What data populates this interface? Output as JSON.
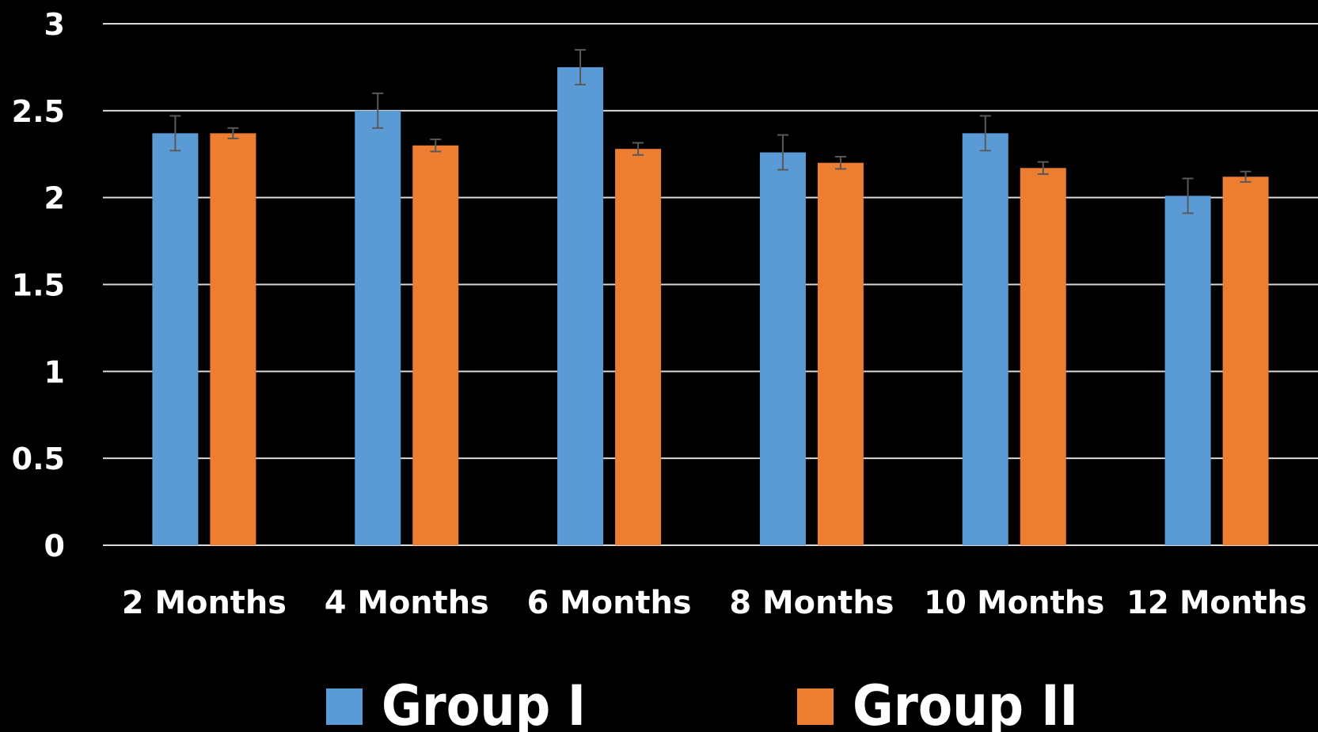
{
  "chart_data": {
    "type": "bar",
    "categories": [
      "2 Months",
      "4 Months",
      "6 Months",
      "8 Months",
      "10 Months",
      "12 Months"
    ],
    "series": [
      {
        "name": "Group I",
        "color": "#5b9bd5",
        "values": [
          2.37,
          2.5,
          2.75,
          2.26,
          2.37,
          2.01
        ],
        "error": [
          0.1,
          0.1,
          0.1,
          0.1,
          0.1,
          0.1
        ]
      },
      {
        "name": "Group II",
        "color": "#ed7d31",
        "values": [
          2.37,
          2.3,
          2.28,
          2.2,
          2.17,
          2.12
        ],
        "error": [
          0.03,
          0.035,
          0.035,
          0.035,
          0.035,
          0.03
        ]
      }
    ],
    "ylim": [
      0,
      3
    ],
    "yticks": [
      "0",
      "0.5",
      "1",
      "1.5",
      "2",
      "2.5",
      "3"
    ],
    "grid": true,
    "legend_position": "bottom",
    "background": "#000000",
    "text_color": "#ffffff",
    "grid_color": "#d9d9d9",
    "error_bar_color": "#595959"
  }
}
